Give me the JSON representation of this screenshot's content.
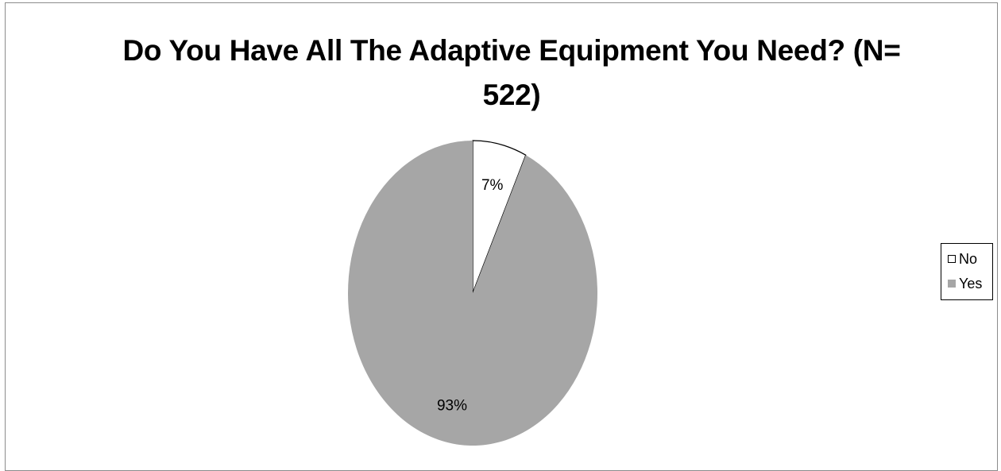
{
  "chart_data": {
    "type": "pie",
    "title_lines": [
      "Do You Have All The Adaptive Equipment You Need? (N=",
      "522)"
    ],
    "slices": [
      {
        "name": "No",
        "value": 7,
        "label": "7%",
        "color": "#ffffff"
      },
      {
        "name": "Yes",
        "value": 93,
        "label": "93%",
        "color": "#a6a6a6"
      }
    ],
    "start_angle": "12 o'clock",
    "direction": "clockwise",
    "slice_border_color": "#000000",
    "legend_position": "right",
    "legend": [
      {
        "label": "No",
        "color": "#ffffff"
      },
      {
        "label": "Yes",
        "color": "#a6a6a6"
      }
    ]
  }
}
